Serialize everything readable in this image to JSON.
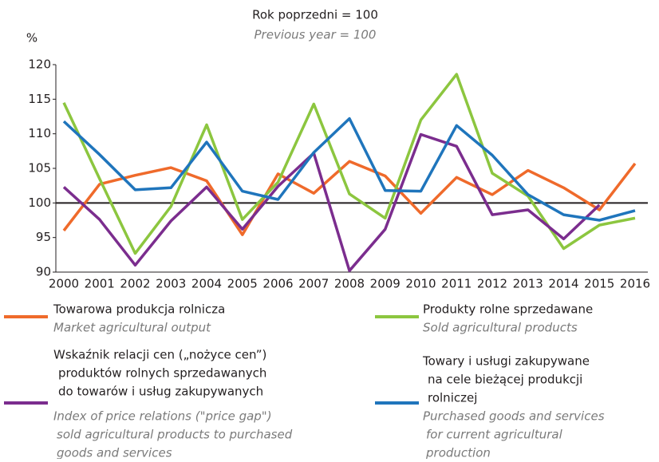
{
  "chart_data": {
    "type": "line",
    "title": "Rok poprzedni = 100",
    "subtitle": "Previous year = 100",
    "y_label": "%",
    "categories": [
      "2000",
      "2001",
      "2002",
      "2003",
      "2004",
      "2005",
      "2006",
      "2007",
      "2008",
      "2009",
      "2010",
      "2011",
      "2012",
      "2013",
      "2014",
      "2015",
      "2016"
    ],
    "ylim": [
      90,
      120
    ],
    "yticks": [
      90,
      95,
      100,
      105,
      110,
      115,
      120
    ],
    "reference_line": 100,
    "series": [
      {
        "name": [
          "Towarowa produkcja rolnicza"
        ],
        "name_en": [
          "Market agricultural output"
        ],
        "color": "#ef6a2b",
        "values": [
          96.0,
          102.7,
          104.0,
          105.1,
          103.2,
          95.4,
          104.2,
          101.4,
          106.0,
          103.9,
          98.5,
          103.7,
          101.2,
          104.7,
          102.2,
          99.0,
          105.7
        ]
      },
      {
        "name": [
          "Produkty rolne sprzedawane"
        ],
        "name_en": [
          "Sold agricultural products"
        ],
        "color": "#8cc63f",
        "values": [
          114.5,
          103.5,
          92.7,
          99.5,
          111.3,
          97.6,
          103.0,
          114.3,
          101.3,
          97.8,
          112.0,
          118.6,
          104.3,
          101.0,
          93.4,
          96.8,
          97.8
        ]
      },
      {
        "name": [
          "Wskaźnik relacji cen („nożyce cen”)",
          "produktów rolnych sprzedawanych",
          "do towarów i usług zakupywanych"
        ],
        "name_en": [
          "Index of price relations (\"price gap\")",
          "sold agricultural  products to purchased",
          "goods and services"
        ],
        "color": "#7b2d8e",
        "values": [
          102.3,
          97.6,
          91.0,
          97.4,
          102.3,
          96.2,
          102.4,
          107.2,
          90.2,
          96.2,
          109.9,
          108.2,
          98.3,
          99.0,
          94.8,
          99.7,
          null
        ]
      },
      {
        "name": [
          "Towary i usługi zakupywane",
          "na cele bieżącej produkcji",
          "rolniczej"
        ],
        "name_en": [
          "Purchased goods and services",
          "for current agricultural",
          "production"
        ],
        "color": "#1f75bc",
        "values": [
          111.8,
          107.0,
          101.9,
          102.2,
          108.8,
          101.7,
          100.5,
          107.3,
          112.2,
          101.8,
          101.7,
          111.2,
          106.9,
          101.2,
          98.3,
          97.5,
          98.9
        ]
      }
    ]
  }
}
